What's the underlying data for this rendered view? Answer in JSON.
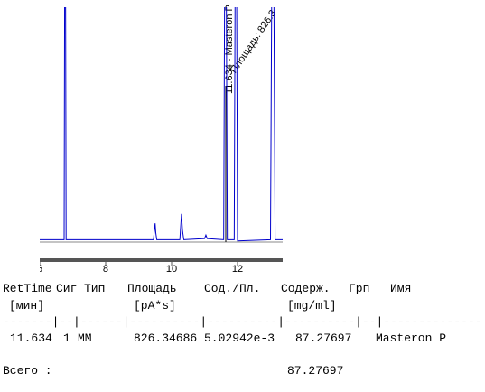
{
  "chart_data": {
    "type": "line",
    "annotations": [
      "11.634 - Masteron P",
      "Площадь: 826.3"
    ],
    "x": [
      6.0,
      6.74,
      6.77,
      6.8,
      9.45,
      9.5,
      9.52,
      9.55,
      10.25,
      10.3,
      10.33,
      10.37,
      11.0,
      11.04,
      11.08,
      11.58,
      11.634,
      11.69,
      11.9,
      11.95,
      12.0,
      13.0,
      13.07,
      13.14,
      13.37
    ],
    "series": [
      {
        "color": "#0000cc",
        "values": [
          1,
          1,
          200,
          1,
          1,
          8,
          4,
          1,
          1,
          12,
          5,
          1,
          1.5,
          3,
          1.5,
          1,
          200,
          1,
          1,
          200,
          0.5,
          1,
          200,
          1,
          1
        ]
      }
    ],
    "xlim": [
      6,
      13.37
    ],
    "ylim": [
      0,
      100
    ],
    "xticks": [
      6,
      8,
      10,
      12
    ]
  },
  "report": {
    "header": [
      "RetTime",
      "Сиг",
      "Тип",
      "Площадь",
      "Сод./Пл.",
      "Содерж.",
      "Грп",
      "Имя"
    ],
    "units": [
      "[мин]",
      "[pA*s]",
      "[mg/ml]"
    ],
    "separator": "-------|--|------|----------|----------|----------|--|--------------",
    "rows": [
      [
        "11.634",
        "1",
        "MM",
        "826.34686",
        "5.02942e-3",
        "87.27697",
        "Masteron P"
      ]
    ],
    "total_label": "Всего :",
    "total_value": "87.27697"
  }
}
